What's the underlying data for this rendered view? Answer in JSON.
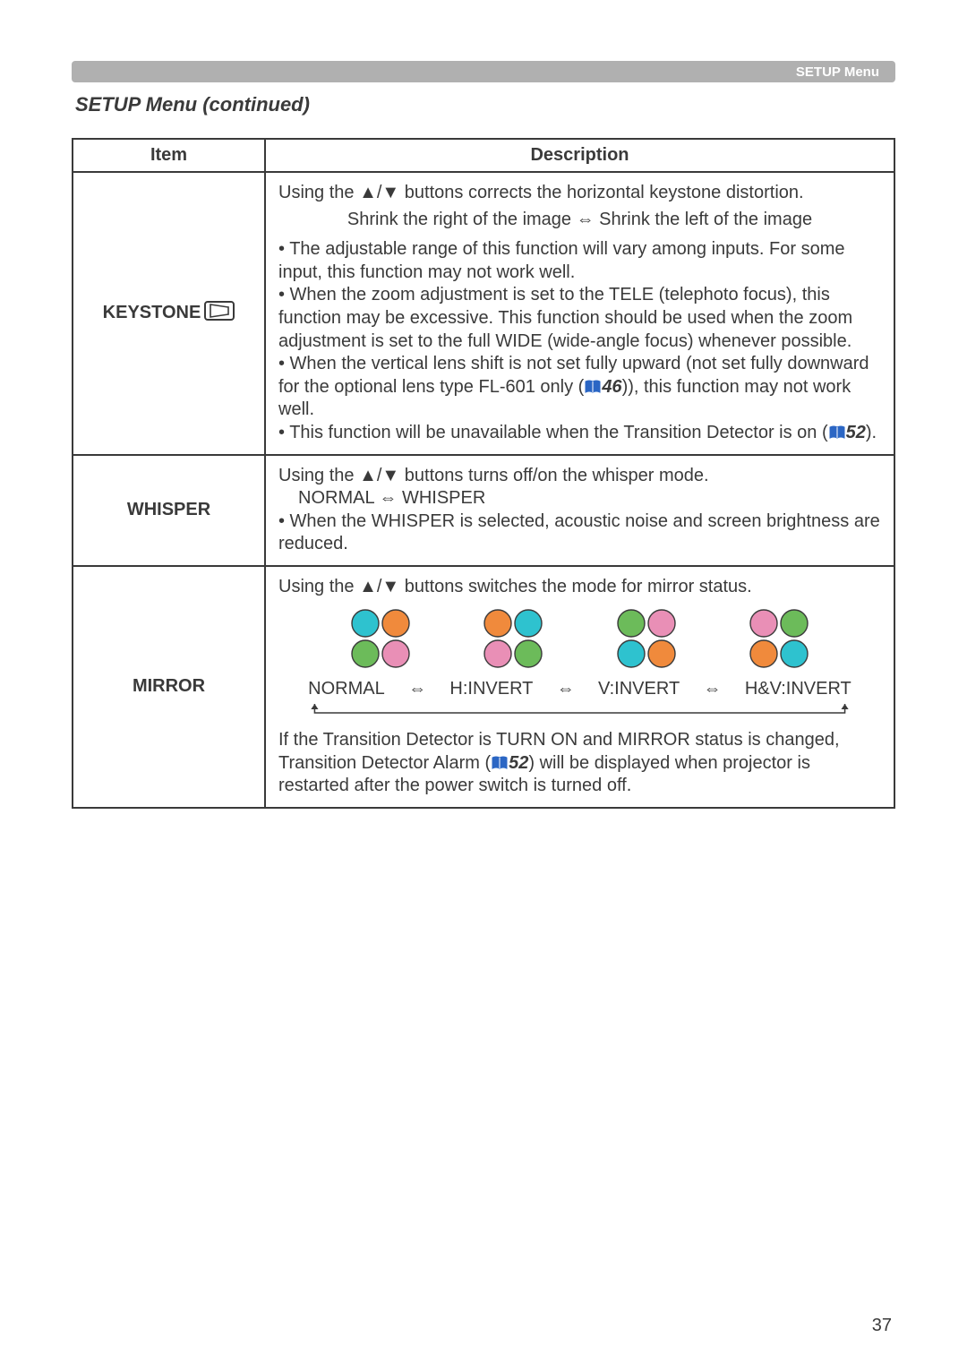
{
  "header": {
    "label": "SETUP Menu"
  },
  "section_title": "SETUP Menu (continued)",
  "table": {
    "headers": [
      "Item",
      "Description"
    ],
    "rows": [
      {
        "item": "KEYSTONE",
        "has_keystone_icon": true,
        "desc": {
          "line1_a": "Using the ",
          "line1_arrows": "▲/▼",
          "line1_b": " buttons corrects the horizontal keystone distortion.",
          "line2_a": "Shrink the right of the image ",
          "line2_arrow": "⇔",
          "line2_b": " Shrink the left of the image",
          "bullets": [
            "• The adjustable range of this function will vary among inputs. For some input, this function may not work well.",
            "• When the zoom adjustment is set to the TELE (telephoto focus), this function may be excessive. This function should be used when the zoom adjustment is set to the full WIDE (wide-angle focus) whenever possible."
          ],
          "bullet_ref1_a": "• When the vertical lens shift is not set fully upward (not set fully downward for the optional lens type FL-601 only (",
          "bullet_ref1_ref": "46",
          "bullet_ref1_b": ")), this function may not work well.",
          "bullet_ref2_a": "• This function will be unavailable when the Transition Detector is on (",
          "bullet_ref2_ref": "52",
          "bullet_ref2_b": ")."
        }
      },
      {
        "item": "WHISPER",
        "desc": {
          "line1_a": "Using the ",
          "line1_arrows": "▲/▼",
          "line1_b": " buttons turns off/on the whisper mode.",
          "line2": "NORMAL ⇔ WHISPER",
          "bullet": "• When the WHISPER is selected, acoustic noise and screen brightness are reduced."
        }
      },
      {
        "item": "MIRROR",
        "desc": {
          "line1_a": "Using the ",
          "line1_arrows": "▲/▼",
          "line1_b": " buttons switches the mode for mirror status.",
          "options": [
            "NORMAL",
            "H:INVERT",
            "V:INVERT",
            "H&V:INVERT"
          ],
          "option_sep": "⇔",
          "note_a": "If the Transition Detector is TURN ON and MIRROR status is changed, Transition Detector Alarm (",
          "note_ref": "52",
          "note_b": ") will be displayed when projector is restarted after the power switch is turned off."
        }
      }
    ]
  },
  "page_number": "37",
  "cluster_colors": {
    "cyan": "#2ec2cf",
    "orange": "#f08a3c",
    "green": "#6cbb5a",
    "pink": "#e98fb6",
    "radius": 15,
    "spacing": 17
  }
}
